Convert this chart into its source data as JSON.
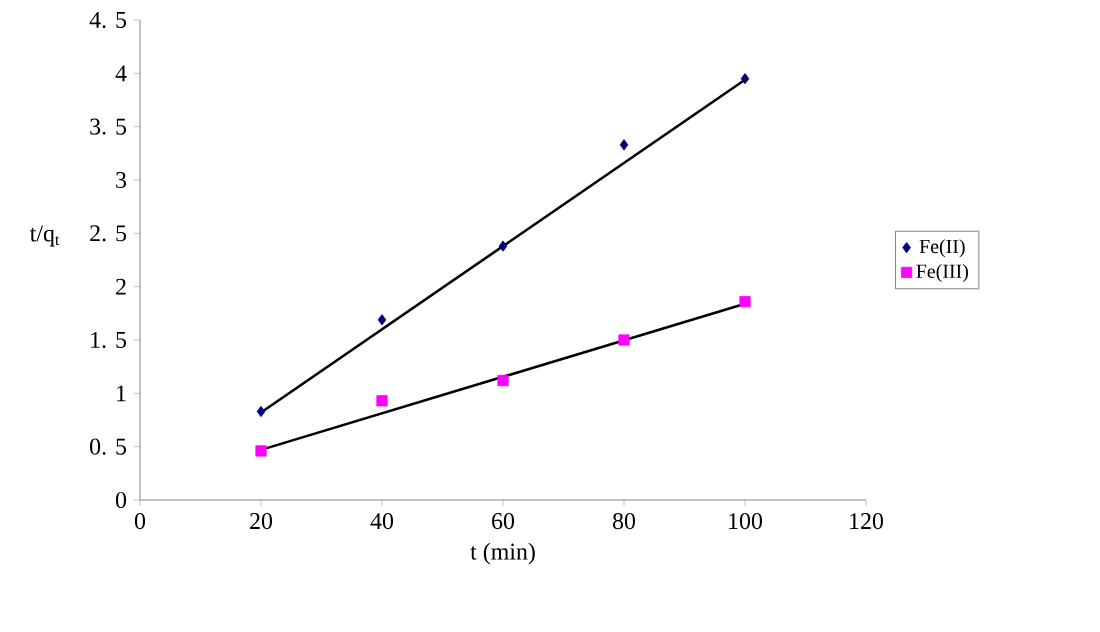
{
  "chart_data": {
    "type": "scatter",
    "xlabel": "t (min)",
    "ylabel": "t/q$_{t}$",
    "xlim": [
      0,
      120
    ],
    "ylim": [
      0,
      4.5
    ],
    "xticks": [
      0,
      20,
      40,
      60,
      80,
      100,
      120
    ],
    "yticks": [
      0,
      {
        "value": 0.5,
        "label": "0. 5"
      },
      1,
      {
        "value": 1.5,
        "label": "1. 5"
      },
      2,
      {
        "value": 2.5,
        "label": "2. 5"
      },
      3,
      {
        "value": 3.5,
        "label": "3. 5"
      },
      4,
      {
        "value": 4.5,
        "label": "4. 5"
      }
    ],
    "grid": false,
    "legend": "right",
    "series": [
      {
        "name": "Fe(II)",
        "marker": "diamond",
        "color": "#000080",
        "x": [
          20,
          40,
          60,
          80,
          100
        ],
        "values": [
          0.83,
          1.69,
          2.38,
          3.33,
          3.95
        ]
      },
      {
        "name": "Fe(III)",
        "marker": "square",
        "color": "#ff00ff",
        "x": [
          20,
          40,
          60,
          80,
          100
        ],
        "values": [
          0.46,
          0.93,
          1.12,
          1.5,
          1.86
        ]
      },
      {
        "type": "line",
        "marker": "none",
        "color": "#000000",
        "x": [
          20,
          100
        ],
        "values": [
          0.82,
          3.94
        ]
      },
      {
        "type": "line",
        "marker": "none",
        "color": "#000000",
        "x": [
          20,
          100
        ],
        "values": [
          0.47,
          1.84
        ]
      }
    ]
  }
}
